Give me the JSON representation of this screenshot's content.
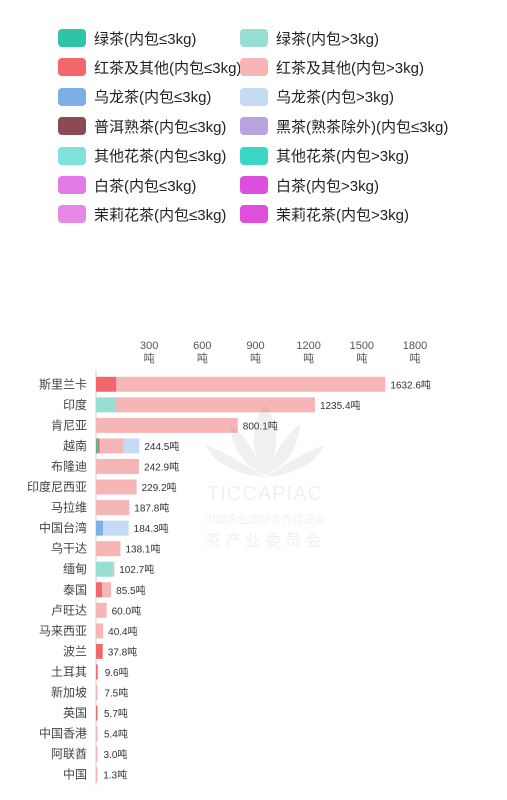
{
  "legend": [
    {
      "label": "绿茶(内包≤3kg)",
      "color": "#2ec4a5"
    },
    {
      "label": "绿茶(内包>3kg)",
      "color": "#97dfd3"
    },
    {
      "label": "红茶及其他(内包≤3kg)",
      "color": "#f2676a"
    },
    {
      "label": "红茶及其他(内包>3kg)",
      "color": "#f7b6b6"
    },
    {
      "label": "乌龙茶(内包≤3kg)",
      "color": "#7fb0e5"
    },
    {
      "label": "乌龙茶(内包>3kg)",
      "color": "#c5daf4"
    },
    {
      "label": "普洱熟茶(内包≤3kg)",
      "color": "#8b4b52"
    },
    {
      "label": "黑茶(熟茶除外)(内包≤3kg)",
      "color": "#b7a4df"
    },
    {
      "label": "其他花茶(内包≤3kg)",
      "color": "#7fe3da"
    },
    {
      "label": "其他花茶(内包>3kg)",
      "color": "#3cd6c4"
    },
    {
      "label": "白茶(内包≤3kg)",
      "color": "#e47ae6"
    },
    {
      "label": "白茶(内包>3kg)",
      "color": "#db4fdd"
    },
    {
      "label": "茉莉花茶(内包≤3kg)",
      "color": "#e788e6"
    },
    {
      "label": "茉莉花茶(内包>3kg)",
      "color": "#e04fdc"
    }
  ],
  "watermark": {
    "line1": "TICCAPIAC",
    "line2": "中国农业国际合作促进会",
    "line3": "茶产业委员会"
  },
  "chart_data": {
    "type": "bar",
    "orientation": "horizontal",
    "stacked": true,
    "xlim": [
      0,
      1900
    ],
    "ticks": [
      300,
      600,
      900,
      1200,
      1500,
      1800
    ],
    "tick_unit": "吨",
    "categories": [
      "斯里兰卡",
      "印度",
      "肯尼亚",
      "越南",
      "布隆迪",
      "印度尼西亚",
      "马拉维",
      "中国台湾",
      "乌干达",
      "缅甸",
      "泰国",
      "卢旺达",
      "马来西亚",
      "波兰",
      "土耳其",
      "新加坡",
      "英国",
      "中国香港",
      "阿联酋",
      "中国"
    ],
    "totals": [
      "1632.6吨",
      "1235.4吨",
      "800.1吨",
      "244.5吨",
      "242.9吨",
      "229.2吨",
      "187.8吨",
      "184.3吨",
      "138.1吨",
      "102.7吨",
      "85.5吨",
      "60.0吨",
      "40.4吨",
      "37.8吨",
      "9.6吨",
      "7.5吨",
      "5.7吨",
      "5.4吨",
      "3.0吨",
      "1.3吨"
    ],
    "total_values": [
      1632.6,
      1235.4,
      800.1,
      244.5,
      242.9,
      229.2,
      187.8,
      184.3,
      138.1,
      102.7,
      85.5,
      60.0,
      40.4,
      37.8,
      9.6,
      7.5,
      5.7,
      5.4,
      3.0,
      1.3
    ],
    "series": [
      {
        "name": "绿茶(内包≤3kg)",
        "color": "#2ec4a5",
        "values": [
          0,
          0,
          0,
          10,
          0,
          0,
          0,
          0,
          0,
          0,
          0,
          0,
          0,
          0,
          0,
          0,
          0,
          0,
          0,
          0
        ]
      },
      {
        "name": "绿茶(内包>3kg)",
        "color": "#97dfd3",
        "values": [
          0,
          110,
          0,
          0,
          0,
          0,
          0,
          0,
          0,
          95,
          0,
          0,
          0,
          0,
          0,
          0,
          0,
          0,
          0,
          0
        ]
      },
      {
        "name": "红茶及其他(内包≤3kg)",
        "color": "#f2676a",
        "values": [
          115,
          0,
          0,
          10,
          0,
          0,
          0,
          0,
          0,
          0,
          35,
          0,
          0,
          37.8,
          9.6,
          0,
          5.7,
          0,
          0,
          0
        ]
      },
      {
        "name": "红茶及其他(内包>3kg)",
        "color": "#f7b6b6",
        "values": [
          1517.6,
          1125.4,
          800.1,
          134.5,
          242.9,
          229.2,
          187.8,
          0,
          138.1,
          7.7,
          50.5,
          60.0,
          40.4,
          0,
          0,
          7.5,
          0,
          5.4,
          3.0,
          1.3
        ]
      },
      {
        "name": "乌龙茶(内包≤3kg)",
        "color": "#7fb0e5",
        "values": [
          0,
          0,
          0,
          0,
          0,
          0,
          0,
          40,
          0,
          0,
          0,
          0,
          0,
          0,
          0,
          0,
          0,
          0,
          0,
          0
        ]
      },
      {
        "name": "乌龙茶(内包>3kg)",
        "color": "#c5daf4",
        "values": [
          0,
          0,
          0,
          90,
          0,
          0,
          0,
          144.3,
          0,
          0,
          0,
          0,
          0,
          0,
          0,
          0,
          0,
          0,
          0,
          0
        ]
      }
    ]
  }
}
